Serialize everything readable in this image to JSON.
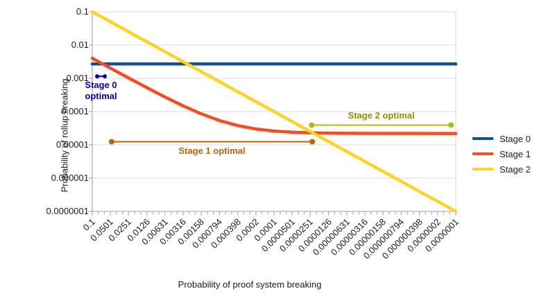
{
  "chart_data": {
    "type": "line",
    "title": "",
    "xlabel": "Probability of proof system breaking",
    "ylabel": "Probability of rollup breaking",
    "x_scale": "log-descending",
    "y_scale": "log-descending",
    "xlim": [
      0.1,
      1e-07
    ],
    "ylim": [
      0.1,
      1e-07
    ],
    "grid": "horizontal-decades-only",
    "legend_position": "right",
    "x_tick_labels": [
      "0.1",
      "0.0501",
      "0.0251",
      "0.0126",
      "0.00631",
      "0.00316",
      "0.00158",
      "0.000794",
      "0.000398",
      "0.0002",
      "0.0001",
      "0.0000501",
      "0.0000251",
      "0.0000126",
      "0.00000631",
      "0.00000316",
      "0.00000158",
      "0.000000794",
      "0.000000398",
      "0.0000002",
      "0.0000001"
    ],
    "y_tick_labels": [
      "0.1",
      "0.01",
      "0.001",
      "0.0001",
      "0.00001",
      "0.000001",
      "0.0000001"
    ],
    "style": {
      "grid_color": "#d8d8d8",
      "axis_color": "#b2b2b2",
      "tick_text_color": "#1a1a1a"
    },
    "series": [
      {
        "name": "Stage 0",
        "color": "#15528f",
        "points": [
          [
            0.1,
            0.0027
          ],
          [
            1e-07,
            0.0027
          ]
        ]
      },
      {
        "name": "Stage 1",
        "color": "#fb4a1e",
        "points": [
          [
            0.1,
            0.004022
          ],
          [
            0.0501,
            0.0020262
          ],
          [
            0.0251,
            0.0010262
          ],
          [
            0.0126,
            0.000526
          ],
          [
            0.00631,
            0.0002744
          ],
          [
            0.00316,
            0.00014842
          ],
          [
            0.00158,
            8.52e-05
          ],
          [
            0.000794,
            5.378e-05
          ],
          [
            0.000398,
            3.792e-05
          ],
          [
            0.0002,
            3e-05
          ],
          [
            0.0001,
            2.6e-05
          ],
          [
            5.01e-05,
            2.4e-05
          ],
          [
            2.51e-05,
            2.3e-05
          ],
          [
            1.26e-05,
            2.25e-05
          ],
          [
            6.31e-06,
            2.22e-05
          ],
          [
            3.16e-06,
            2.21e-05
          ],
          [
            1.58e-06,
            2.206e-05
          ],
          [
            1e-07,
            2.2e-05
          ]
        ]
      },
      {
        "name": "Stage 2",
        "color": "#ffd320",
        "points": [
          [
            0.1,
            0.1
          ],
          [
            1e-07,
            1e-07
          ]
        ]
      }
    ],
    "annotations": [
      {
        "id": "stage-0-optimal",
        "label": "Stage 0\noptimal",
        "color": "#0000cc",
        "text_color": "#0000cc",
        "x1": 0.083,
        "x2": 0.0622,
        "y": 0.00115,
        "dot_r": 3,
        "label_placement": "below"
      },
      {
        "id": "stage-1-optimal",
        "label": "Stage 1 optimal",
        "color": "#c26105",
        "text_color": "#c26105",
        "x1": 0.048,
        "x2": 2.34e-05,
        "y": 1.24e-05,
        "dot_r": 4,
        "label_placement": "below"
      },
      {
        "id": "stage-2-optimal",
        "label": "Stage 2 optimal",
        "color": "#b5b900",
        "text_color": "#8f8f00",
        "x1": 2.4e-05,
        "x2": 1.2e-07,
        "y": 3.93e-05,
        "dot_r": 4,
        "label_placement": "above"
      }
    ]
  }
}
